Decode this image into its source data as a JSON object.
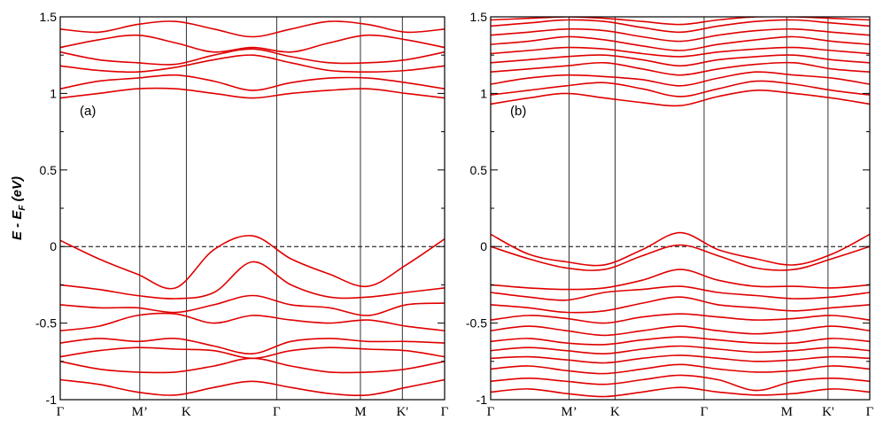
{
  "chart_data": {
    "type": "line",
    "ylabel": {
      "E": "E",
      "minus": " - ",
      "Esub": "E",
      "sub": "F",
      "unit": " (eV)"
    },
    "ylim": [
      -1,
      1.5
    ],
    "yticks": [
      {
        "value": -1,
        "label": "-1"
      },
      {
        "value": -0.5,
        "label": "-0.5"
      },
      {
        "value": 0,
        "label": "0"
      },
      {
        "value": 0.5,
        "label": "0.5"
      },
      {
        "value": 1,
        "label": "1"
      },
      {
        "value": 1.5,
        "label": "1.5"
      }
    ],
    "fermi_level": 0,
    "line_color": "#e00000",
    "kpoint_positions": [
      0,
      0.207,
      0.328,
      0.563,
      0.781,
      0.89,
      1.0
    ],
    "kpoints": [
      "Γ",
      "M’",
      "K",
      "Γ",
      "M",
      "K'",
      "Γ"
    ],
    "panels": [
      {
        "label": "(a)",
        "bands": [
          [
            0.04,
            -0.08,
            -0.18,
            -0.27,
            -0.02,
            0.07,
            -0.08,
            -0.18,
            -0.26,
            -0.12,
            0.05
          ],
          [
            -0.25,
            -0.28,
            -0.32,
            -0.34,
            -0.3,
            -0.1,
            -0.25,
            -0.33,
            -0.33,
            -0.3,
            -0.27
          ],
          [
            -0.38,
            -0.4,
            -0.4,
            -0.43,
            -0.38,
            -0.32,
            -0.38,
            -0.4,
            -0.45,
            -0.38,
            -0.37
          ],
          [
            -0.55,
            -0.52,
            -0.45,
            -0.44,
            -0.5,
            -0.45,
            -0.48,
            -0.5,
            -0.48,
            -0.52,
            -0.55
          ],
          [
            -0.63,
            -0.6,
            -0.62,
            -0.6,
            -0.65,
            -0.7,
            -0.62,
            -0.6,
            -0.62,
            -0.62,
            -0.63
          ],
          [
            -0.72,
            -0.68,
            -0.66,
            -0.67,
            -0.68,
            -0.73,
            -0.68,
            -0.66,
            -0.67,
            -0.68,
            -0.72
          ],
          [
            -0.75,
            -0.8,
            -0.82,
            -0.82,
            -0.78,
            -0.73,
            -0.78,
            -0.82,
            -0.82,
            -0.8,
            -0.75
          ],
          [
            -0.87,
            -0.9,
            -0.95,
            -0.97,
            -0.92,
            -0.88,
            -0.92,
            -0.96,
            -0.97,
            -0.92,
            -0.87
          ],
          [
            0.97,
            1.0,
            1.03,
            1.03,
            1.0,
            0.97,
            1.0,
            1.02,
            1.03,
            1.0,
            0.97
          ],
          [
            1.03,
            1.08,
            1.1,
            1.12,
            1.08,
            1.02,
            1.07,
            1.1,
            1.1,
            1.07,
            1.03
          ],
          [
            1.18,
            1.15,
            1.14,
            1.17,
            1.22,
            1.25,
            1.2,
            1.15,
            1.14,
            1.15,
            1.18
          ],
          [
            1.27,
            1.22,
            1.2,
            1.19,
            1.25,
            1.29,
            1.24,
            1.2,
            1.2,
            1.22,
            1.27
          ],
          [
            1.3,
            1.35,
            1.38,
            1.33,
            1.27,
            1.3,
            1.27,
            1.33,
            1.38,
            1.35,
            1.3
          ],
          [
            1.42,
            1.4,
            1.45,
            1.47,
            1.42,
            1.37,
            1.42,
            1.47,
            1.45,
            1.4,
            1.42
          ]
        ]
      },
      {
        "label": "(b)",
        "bands": [
          [
            0.08,
            -0.05,
            -0.1,
            -0.12,
            -0.02,
            0.09,
            -0.02,
            -0.08,
            -0.12,
            -0.05,
            0.08
          ],
          [
            0.0,
            -0.08,
            -0.14,
            -0.15,
            -0.06,
            0.01,
            -0.06,
            -0.14,
            -0.15,
            -0.08,
            0.0
          ],
          [
            -0.25,
            -0.27,
            -0.28,
            -0.27,
            -0.22,
            -0.15,
            -0.22,
            -0.26,
            -0.26,
            -0.27,
            -0.25
          ],
          [
            -0.3,
            -0.33,
            -0.35,
            -0.3,
            -0.28,
            -0.26,
            -0.3,
            -0.32,
            -0.34,
            -0.33,
            -0.3
          ],
          [
            -0.38,
            -0.4,
            -0.43,
            -0.42,
            -0.37,
            -0.33,
            -0.38,
            -0.4,
            -0.42,
            -0.4,
            -0.38
          ],
          [
            -0.48,
            -0.45,
            -0.47,
            -0.5,
            -0.46,
            -0.44,
            -0.46,
            -0.48,
            -0.47,
            -0.45,
            -0.48
          ],
          [
            -0.55,
            -0.52,
            -0.55,
            -0.58,
            -0.55,
            -0.52,
            -0.55,
            -0.57,
            -0.55,
            -0.52,
            -0.55
          ],
          [
            -0.62,
            -0.6,
            -0.63,
            -0.64,
            -0.61,
            -0.59,
            -0.61,
            -0.63,
            -0.63,
            -0.6,
            -0.62
          ],
          [
            -0.68,
            -0.66,
            -0.68,
            -0.7,
            -0.67,
            -0.65,
            -0.67,
            -0.69,
            -0.68,
            -0.66,
            -0.68
          ],
          [
            -0.73,
            -0.72,
            -0.74,
            -0.76,
            -0.73,
            -0.71,
            -0.73,
            -0.75,
            -0.74,
            -0.72,
            -0.73
          ],
          [
            -0.8,
            -0.78,
            -0.81,
            -0.83,
            -0.8,
            -0.77,
            -0.8,
            -0.82,
            -0.81,
            -0.78,
            -0.8
          ],
          [
            -0.88,
            -0.86,
            -0.88,
            -0.9,
            -0.87,
            -0.84,
            -0.87,
            -0.94,
            -0.88,
            -0.86,
            -0.88
          ],
          [
            -0.95,
            -0.93,
            -0.96,
            -0.98,
            -0.95,
            -0.92,
            -0.95,
            -0.97,
            -0.96,
            -0.93,
            -0.95
          ],
          [
            0.93,
            0.97,
            1.0,
            0.97,
            0.94,
            0.92,
            0.98,
            1.02,
            1.0,
            0.97,
            0.93
          ],
          [
            0.99,
            1.02,
            1.05,
            1.07,
            1.03,
            0.98,
            1.03,
            1.08,
            1.06,
            1.02,
            0.99
          ],
          [
            1.06,
            1.1,
            1.12,
            1.11,
            1.09,
            1.05,
            1.1,
            1.14,
            1.12,
            1.1,
            1.06
          ],
          [
            1.14,
            1.16,
            1.18,
            1.2,
            1.16,
            1.12,
            1.16,
            1.19,
            1.2,
            1.16,
            1.14
          ],
          [
            1.2,
            1.22,
            1.24,
            1.25,
            1.22,
            1.18,
            1.22,
            1.24,
            1.25,
            1.22,
            1.2
          ],
          [
            1.26,
            1.28,
            1.3,
            1.29,
            1.26,
            1.24,
            1.27,
            1.29,
            1.3,
            1.28,
            1.26
          ],
          [
            1.32,
            1.34,
            1.37,
            1.35,
            1.31,
            1.28,
            1.32,
            1.35,
            1.37,
            1.34,
            1.32
          ],
          [
            1.38,
            1.4,
            1.42,
            1.41,
            1.37,
            1.34,
            1.38,
            1.41,
            1.42,
            1.4,
            1.38
          ],
          [
            1.44,
            1.46,
            1.48,
            1.47,
            1.43,
            1.4,
            1.44,
            1.47,
            1.48,
            1.46,
            1.44
          ],
          [
            1.48,
            1.49,
            1.5,
            1.49,
            1.47,
            1.45,
            1.48,
            1.5,
            1.5,
            1.49,
            1.48
          ]
        ]
      }
    ]
  }
}
